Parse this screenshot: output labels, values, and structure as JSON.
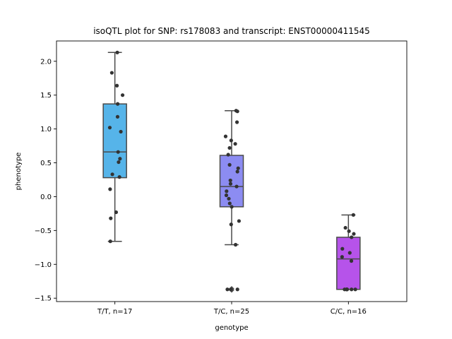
{
  "chart_data": {
    "type": "box",
    "title": "isoQTL plot for SNP: rs178083 and transcript: ENST00000411545",
    "xlabel": "genotype",
    "ylabel": "phenotype",
    "ylim": [
      -1.55,
      2.3
    ],
    "yticks": [
      -1.5,
      -1.0,
      -0.5,
      0.0,
      0.5,
      1.0,
      1.5,
      2.0
    ],
    "ytick_labels": [
      "−1.5",
      "−1.0",
      "−0.5",
      "0.0",
      "0.5",
      "1.0",
      "1.5",
      "2.0"
    ],
    "grid": false,
    "categories": [
      "T/T, n=17",
      "T/C, n=25",
      "C/C, n=16"
    ],
    "boxes": [
      {
        "category": "T/T, n=17",
        "color": "#56b4e9",
        "q1": 0.28,
        "median": 0.66,
        "q3": 1.37,
        "whisker_low": -0.66,
        "whisker_high": 2.13,
        "fliers": [],
        "points": [
          2.13,
          1.83,
          1.64,
          1.5,
          1.37,
          1.18,
          1.02,
          0.96,
          0.66,
          0.56,
          0.51,
          0.33,
          0.29,
          0.11,
          -0.23,
          -0.32,
          -0.66
        ]
      },
      {
        "category": "T/C, n=25",
        "color": "#8c8cf2",
        "q1": -0.15,
        "median": 0.15,
        "q3": 0.61,
        "whisker_low": -0.71,
        "whisker_high": 1.27,
        "fliers": [
          -1.36,
          -1.38
        ],
        "points": [
          1.27,
          1.26,
          1.1,
          0.89,
          0.83,
          0.78,
          0.72,
          0.62,
          0.47,
          0.42,
          0.37,
          0.24,
          0.19,
          0.15,
          0.08,
          0.02,
          -0.03,
          -0.1,
          -0.15,
          -0.36,
          -0.41,
          -0.71,
          -1.37,
          -1.37,
          -1.37
        ]
      },
      {
        "category": "C/C, n=16",
        "color": "#b653ea",
        "q1": -1.37,
        "median": -0.92,
        "q3": -0.6,
        "whisker_low": -1.37,
        "whisker_high": -0.27,
        "fliers": [],
        "points": [
          -0.27,
          -0.46,
          -0.51,
          -0.55,
          -0.6,
          -0.77,
          -0.83,
          -0.89,
          -0.95,
          -1.37,
          -1.37,
          -1.37,
          -1.37,
          -1.37,
          -1.37,
          -1.37
        ]
      }
    ]
  }
}
